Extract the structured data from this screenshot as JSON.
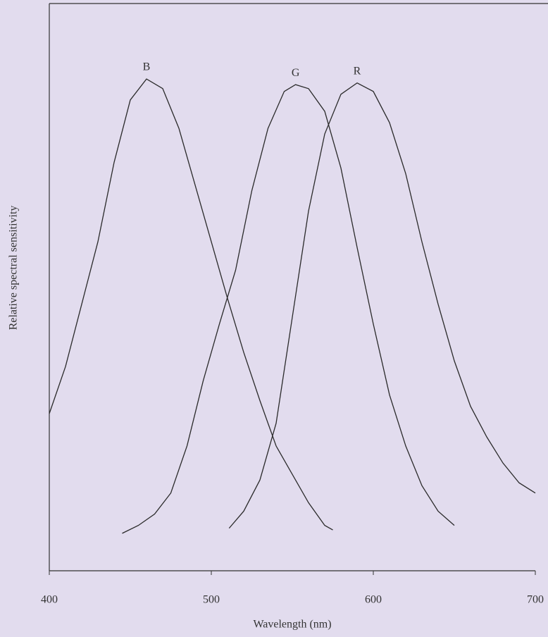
{
  "chart_data": {
    "type": "line",
    "xlabel": "Wavelength (nm)",
    "ylabel": "Relative spectral sensitivity",
    "xlim": [
      400,
      700
    ],
    "xticks": [
      400,
      500,
      600,
      700
    ],
    "ylim": [
      0,
      1
    ],
    "series": [
      {
        "name": "B",
        "color": "#2a2a2a",
        "x": [
          400,
          410,
          420,
          430,
          440,
          450,
          460,
          470,
          480,
          490,
          500,
          510,
          520,
          530,
          540,
          550,
          560,
          570,
          575
        ],
        "values": [
          0.277,
          0.36,
          0.47,
          0.58,
          0.72,
          0.83,
          0.867,
          0.85,
          0.78,
          0.68,
          0.58,
          0.48,
          0.385,
          0.3,
          0.22,
          0.17,
          0.12,
          0.08,
          0.072
        ]
      },
      {
        "name": "G",
        "color": "#2a2a2a",
        "x": [
          445,
          455,
          465,
          475,
          485,
          495,
          505,
          515,
          525,
          535,
          545,
          552,
          560,
          570,
          580,
          590,
          600,
          610,
          620,
          630,
          640,
          650
        ],
        "values": [
          0.066,
          0.08,
          0.1,
          0.137,
          0.22,
          0.335,
          0.435,
          0.53,
          0.67,
          0.78,
          0.845,
          0.857,
          0.85,
          0.81,
          0.71,
          0.57,
          0.435,
          0.31,
          0.22,
          0.15,
          0.105,
          0.08
        ]
      },
      {
        "name": "R",
        "color": "#2a2a2a",
        "x": [
          511,
          520,
          530,
          540,
          550,
          560,
          570,
          580,
          590,
          600,
          610,
          620,
          630,
          640,
          650,
          660,
          670,
          680,
          690,
          700
        ],
        "values": [
          0.075,
          0.105,
          0.16,
          0.26,
          0.447,
          0.634,
          0.77,
          0.84,
          0.86,
          0.845,
          0.79,
          0.7,
          0.58,
          0.47,
          0.37,
          0.29,
          0.236,
          0.19,
          0.155,
          0.137
        ]
      }
    ]
  }
}
